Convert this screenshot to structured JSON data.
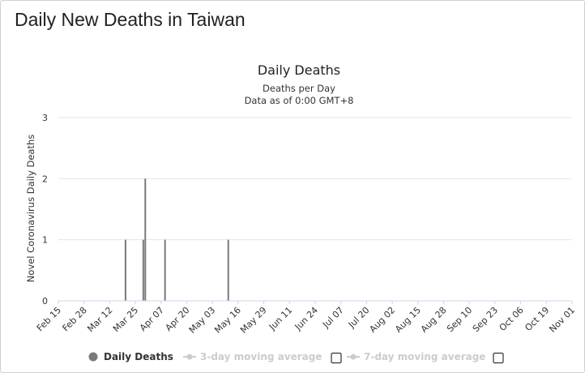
{
  "page": {
    "title": "Daily New Deaths in Taiwan"
  },
  "colors": {
    "series": "#7a7a7a",
    "legend_active": "#333333",
    "legend_inactive": "#cccccc",
    "grid": "#e6e6e6",
    "axis": "#ccd6eb"
  },
  "legend": {
    "items": [
      {
        "label": "Daily Deaths",
        "active": true,
        "icon": "circle-marker-icon"
      },
      {
        "label": "3-day moving average",
        "active": false,
        "icon": "line-marker-icon",
        "checkbox": false
      },
      {
        "label": "7-day moving average",
        "active": false,
        "icon": "line-marker-icon",
        "checkbox": false
      }
    ]
  },
  "chart_data": {
    "type": "bar",
    "title": "Daily Deaths",
    "subtitle": [
      "Deaths per Day",
      "Data as of 0:00 GMT+8"
    ],
    "ylabel": "Novel Coronavirus Daily Deaths",
    "xlabel": "",
    "ylim": [
      0,
      3
    ],
    "yticks": [
      0,
      1,
      2,
      3
    ],
    "grid": true,
    "legend_position": "bottom",
    "x_tick_labels": [
      "Feb 15",
      "Feb 28",
      "Mar 12",
      "Mar 25",
      "Apr 07",
      "Apr 20",
      "May 03",
      "May 16",
      "May 29",
      "Jun 11",
      "Jun 24",
      "Jul 07",
      "Jul 20",
      "Aug 02",
      "Aug 15",
      "Aug 28",
      "Sep 10",
      "Sep 23",
      "Oct 06",
      "Oct 19",
      "Nov 01"
    ],
    "x_start": "Feb 15",
    "x_end": "Nov 01",
    "series": [
      {
        "name": "Daily Deaths",
        "points": [
          {
            "date": "Mar 20",
            "value": 1
          },
          {
            "date": "Mar 29",
            "value": 1
          },
          {
            "date": "Mar 30",
            "value": 2
          },
          {
            "date": "Apr 09",
            "value": 1
          },
          {
            "date": "May 11",
            "value": 1
          }
        ]
      }
    ]
  }
}
